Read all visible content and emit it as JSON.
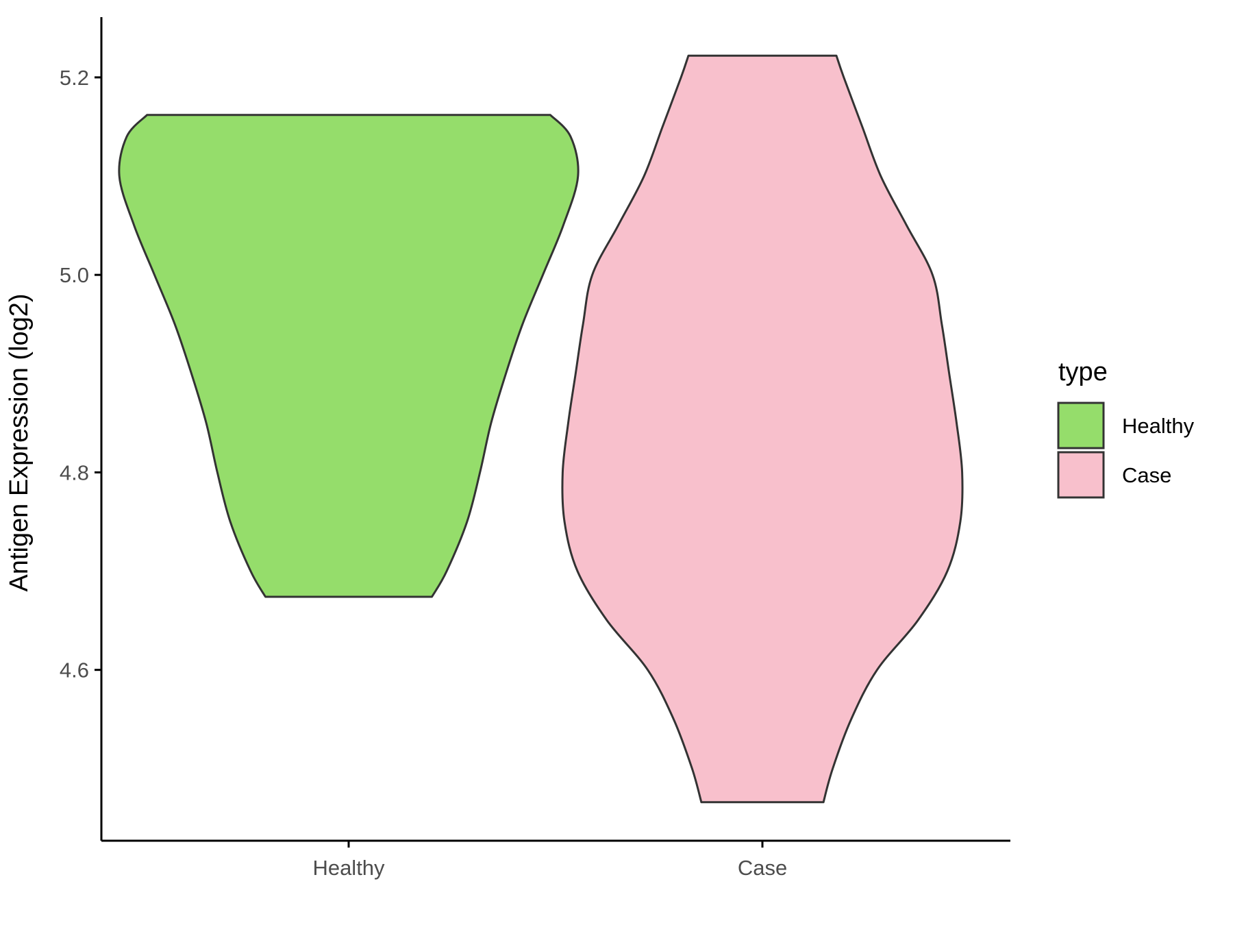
{
  "chart_data": {
    "type": "violin",
    "title": "",
    "xlabel": "",
    "ylabel": "Antigen Expression (log2)",
    "ylim": [
      4.427,
      5.261
    ],
    "yticks": [
      4.6,
      4.8,
      5.0,
      5.2
    ],
    "ytick_labels": [
      "4.6",
      "4.8",
      "5.0",
      "5.2"
    ],
    "categories": [
      "Healthy",
      "Case"
    ],
    "grid": false,
    "legend": {
      "title": "type",
      "placement": "right",
      "entries": [
        "Healthy",
        "Case"
      ]
    },
    "series": [
      {
        "name": "Healthy",
        "color": "#95dd6b",
        "y_min": 4.674,
        "y_max": 5.162,
        "density_profile": [
          {
            "y": 4.674,
            "w": 0.45
          },
          {
            "y": 4.7,
            "w": 0.53
          },
          {
            "y": 4.75,
            "w": 0.64
          },
          {
            "y": 4.8,
            "w": 0.71
          },
          {
            "y": 4.85,
            "w": 0.77
          },
          {
            "y": 4.9,
            "w": 0.85
          },
          {
            "y": 4.95,
            "w": 0.94
          },
          {
            "y": 5.0,
            "w": 1.05
          },
          {
            "y": 5.05,
            "w": 1.16
          },
          {
            "y": 5.1,
            "w": 1.24
          },
          {
            "y": 5.14,
            "w": 1.2
          },
          {
            "y": 5.162,
            "w": 1.09
          }
        ]
      },
      {
        "name": "Case",
        "color": "#f8c0cc",
        "y_min": 4.466,
        "y_max": 5.222,
        "density_profile": [
          {
            "y": 4.466,
            "w": 0.33
          },
          {
            "y": 4.5,
            "w": 0.38
          },
          {
            "y": 4.55,
            "w": 0.48
          },
          {
            "y": 4.6,
            "w": 0.62
          },
          {
            "y": 4.65,
            "w": 0.84
          },
          {
            "y": 4.7,
            "w": 1.0
          },
          {
            "y": 4.75,
            "w": 1.07
          },
          {
            "y": 4.8,
            "w": 1.08
          },
          {
            "y": 4.85,
            "w": 1.05
          },
          {
            "y": 4.9,
            "w": 1.01
          },
          {
            "y": 4.95,
            "w": 0.97
          },
          {
            "y": 5.0,
            "w": 0.92
          },
          {
            "y": 5.05,
            "w": 0.78
          },
          {
            "y": 5.1,
            "w": 0.64
          },
          {
            "y": 5.15,
            "w": 0.54
          },
          {
            "y": 5.2,
            "w": 0.44
          },
          {
            "y": 5.222,
            "w": 0.4
          }
        ]
      }
    ]
  }
}
